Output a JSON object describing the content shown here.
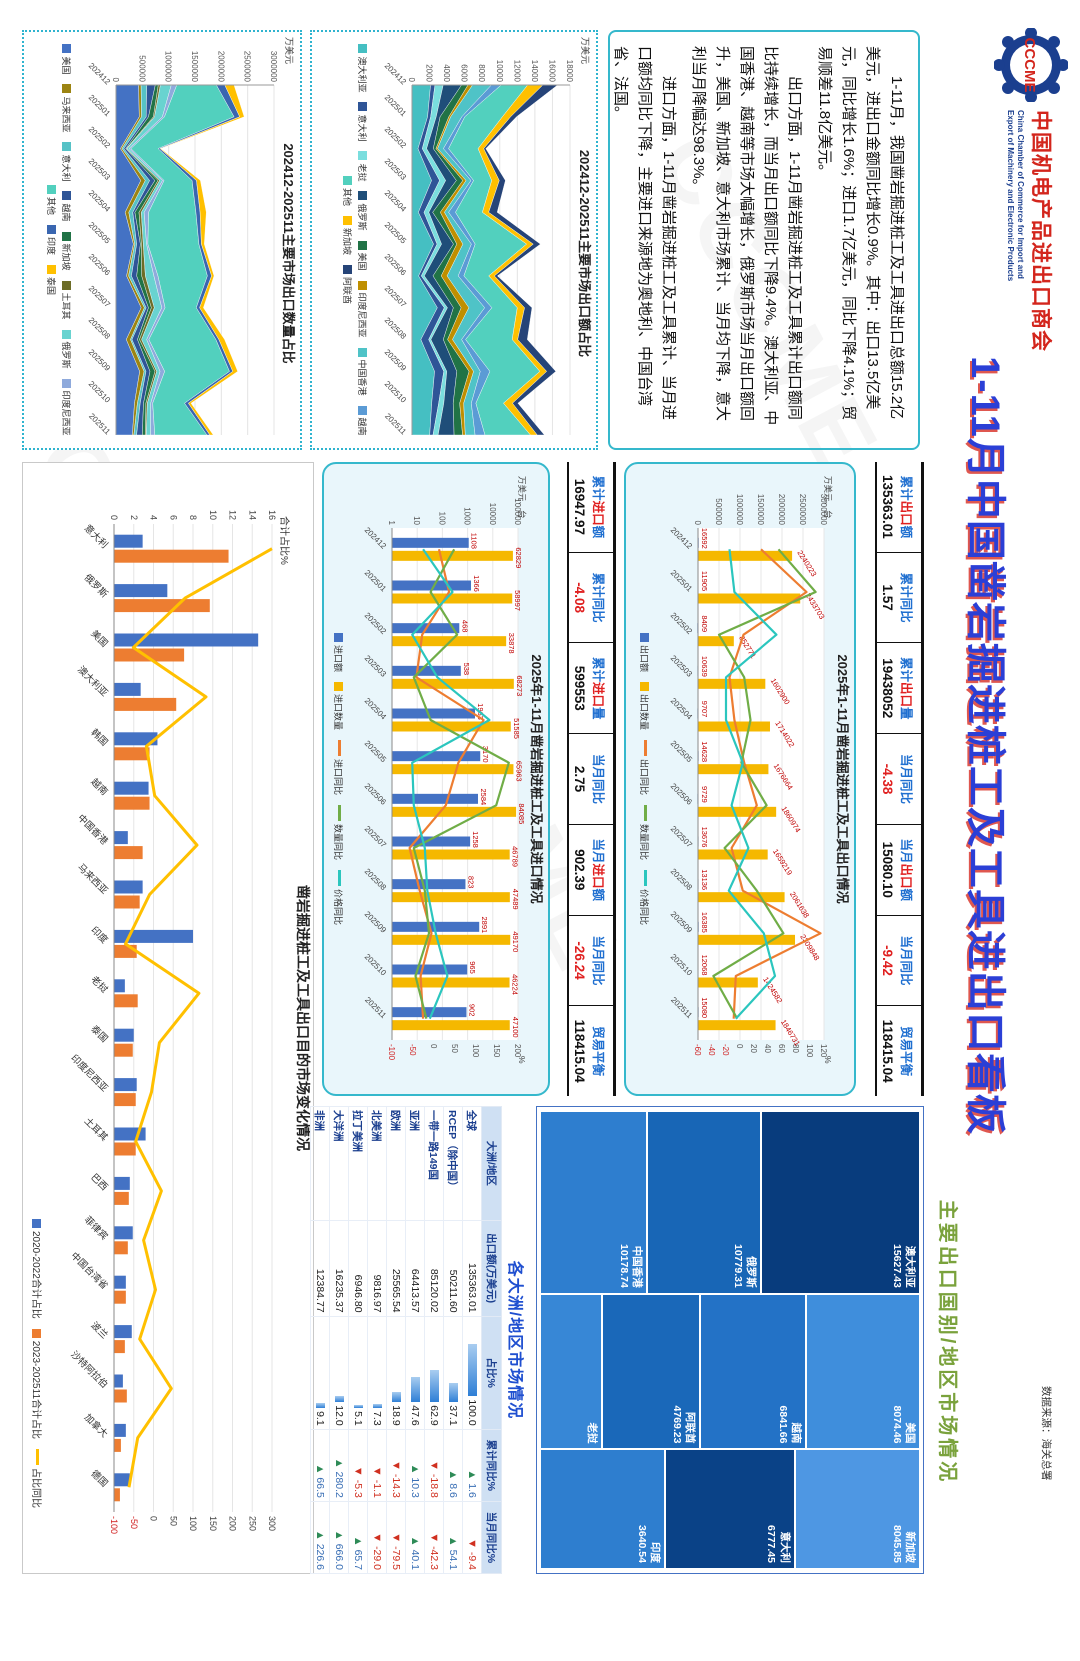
{
  "header": {
    "logo_text": "CCCME",
    "org_cn": "中国机电产品进出口商会",
    "org_en1": "China Chamber of Commerce for Import and",
    "org_en2": "Export of Machinery and Electronic Products",
    "main_title": "1-11月中国凿岩掘进桩工及工具进出口看板",
    "right_section_title": "主要出口国别/地区市场情况",
    "data_source": "数据来源：海关总署"
  },
  "summary": {
    "p1": "1-11月，我国凿岩掘进桩工及工具进出口总额15.2亿美元，进出口金额同比增长0.9%。其中：出口13.5亿美元，同比增长1.6%；进口1.7亿美元，同比下降4.1%；贸易顺差11.8亿美元。",
    "p2": "出口方面，1-11月凿岩掘进桩工及工具累计出口额同比持续增长，而当月出口额同比下降9.4%。澳大利亚、中国香港、越南等市场大幅增长，俄罗斯市场当月出口额回升，美国、新加坡、意大利市场累计、当月均下降，意大利当月降幅达98.3%。",
    "p3": "进口方面，1-11月凿岩掘进桩工及工具累计、当月进口额均同比下降，主要进口来源地为奥地利、中国台湾省、法国。"
  },
  "months": [
    "202412",
    "202501",
    "202502",
    "202503",
    "202504",
    "202505",
    "202506",
    "202507",
    "202508",
    "202509",
    "202510",
    "202511"
  ],
  "kpi_export": {
    "cells": [
      {
        "label": "累计出口额",
        "value": "135363.01"
      },
      {
        "label": "累计同比",
        "value": "1.57"
      },
      {
        "label": "累计出口量",
        "value": "19438052"
      },
      {
        "label": "当月同比",
        "value": "-4.38"
      },
      {
        "label": "当月出口额",
        "value": "15080.10"
      },
      {
        "label": "当月同比",
        "value": "-9.42"
      },
      {
        "label": "贸易平衡",
        "value": "118415.04"
      }
    ]
  },
  "kpi_import": {
    "cells": [
      {
        "label": "累计进口额",
        "value": "16947.97"
      },
      {
        "label": "累计同比",
        "value": "-4.08"
      },
      {
        "label": "累计进口量",
        "value": "599553"
      },
      {
        "label": "当月同比",
        "value": "2.75"
      },
      {
        "label": "当月进口额",
        "value": "902.39"
      },
      {
        "label": "当月同比",
        "value": "-26.24"
      },
      {
        "label": "贸易平衡",
        "value": "118415.04"
      }
    ]
  },
  "chart_data": [
    {
      "id": "export-qty-share",
      "type": "area",
      "title": "202412-202511主要市场出口数量占比",
      "unit": "万美元",
      "ylim": [
        0,
        3000000
      ],
      "ystep": 500000,
      "totals": [
        2240223,
        2433703,
        852771,
        1602900,
        1714022,
        1676664,
        1860974,
        1659219,
        2061638,
        2309848,
        1424582,
        1846731
      ],
      "series": [
        {
          "name": "美国",
          "share": 0.17,
          "color": "#4472C4"
        },
        {
          "name": "马来西亚",
          "share": 0.03,
          "color": "#9C8412"
        },
        {
          "name": "意大利",
          "share": 0.03,
          "color": "#56C2C6"
        },
        {
          "name": "越南",
          "share": 0.04,
          "color": "#2F5597"
        },
        {
          "name": "新加坡",
          "share": 0.03,
          "color": "#217346"
        },
        {
          "name": "土耳其",
          "share": 0.02,
          "color": "#6D6D28"
        },
        {
          "name": "俄罗斯",
          "share": 0.05,
          "color": "#69D3D0"
        },
        {
          "name": "印度尼西亚",
          "share": 0.03,
          "color": "#8FAADC"
        },
        {
          "name": "其他",
          "share": 0.5,
          "color": "#52D0BE"
        },
        {
          "name": "印度",
          "share": 0.06,
          "color": "#3A66B0"
        },
        {
          "name": "泰国",
          "share": 0.04,
          "color": "#FFC000"
        }
      ]
    },
    {
      "id": "export-value-share",
      "type": "area",
      "title": "202412-202511主要市场出口额占比",
      "unit": "万美元",
      "ylim": [
        0,
        18000
      ],
      "ystep": 2000,
      "totals": [
        16592,
        11905,
        8409,
        10639,
        9707,
        14628,
        9729,
        13676,
        13136,
        16385,
        12068,
        15080
      ],
      "series": [
        {
          "name": "澳大利亚",
          "share": 0.13,
          "color": "#45BFC2"
        },
        {
          "name": "意大利",
          "share": 0.05,
          "color": "#2F5597"
        },
        {
          "name": "老挝",
          "share": 0.04,
          "color": "#7ADEDE"
        },
        {
          "name": "俄罗斯",
          "share": 0.08,
          "color": "#1F4E79"
        },
        {
          "name": "美国",
          "share": 0.06,
          "color": "#217346"
        },
        {
          "name": "印度尼西亚",
          "share": 0.04,
          "color": "#BF8F00"
        },
        {
          "name": "中国香港",
          "share": 0.08,
          "color": "#4FC3C7"
        },
        {
          "name": "越南",
          "share": 0.05,
          "color": "#5B9BD5"
        },
        {
          "name": "其他",
          "share": 0.31,
          "color": "#52D0BE"
        },
        {
          "name": "新加坡",
          "share": 0.1,
          "color": "#FFC000"
        },
        {
          "name": "阿联酋",
          "share": 0.06,
          "color": "#264478"
        }
      ]
    },
    {
      "id": "export-combo",
      "type": "combo",
      "title": "2025年1-11月凿岩掘进桩工及工具出口情况",
      "unit": "万美元、台",
      "scale": "linear",
      "ylim": [
        0,
        3000000
      ],
      "ystep": 500000,
      "pct_axis": {
        "min": -60,
        "max": 120,
        "step": 20,
        "unit": "%"
      },
      "bars": [
        {
          "name": "出口额",
          "color": "#4472C4",
          "label_style": "base",
          "values": [
            16592,
            11905,
            8409,
            10639,
            9707,
            14628,
            9729,
            13676,
            13136,
            16385,
            12068,
            15080
          ]
        },
        {
          "name": "出口数量",
          "color": "#F5B800",
          "label_style": "tip-rot",
          "values": [
            2240223,
            2433703,
            852771,
            1602900,
            1714022,
            1676664,
            1860974,
            1659219,
            2061638,
            2309848,
            1424582,
            1846731
          ]
        }
      ],
      "lines": [
        {
          "name": "出口同比",
          "color": "#ED7D31",
          "values": [
            30,
            95,
            5,
            -15,
            -8,
            6,
            24,
            -12,
            4,
            115,
            -6,
            -9
          ]
        },
        {
          "name": "数量同比",
          "color": "#70AD47",
          "values": [
            55,
            108,
            -30,
            6,
            15,
            2,
            38,
            -22,
            24,
            62,
            -38,
            -4
          ]
        },
        {
          "name": "价格同比",
          "color": "#2BC6BE",
          "values": [
            -15,
            -8,
            52,
            -20,
            -20,
            4,
            -12,
            12,
            -16,
            34,
            50,
            -6
          ]
        }
      ]
    },
    {
      "id": "import-combo",
      "type": "combo",
      "title": "2025年1-11月凿岩掘进桩工及工具进口情况",
      "unit": "万美元、台",
      "scale": "log",
      "ylim": [
        1,
        100000
      ],
      "pct_axis": {
        "min": -100,
        "max": 200,
        "step": 50,
        "unit": "%"
      },
      "bars": [
        {
          "name": "进口额",
          "color": "#4472C4",
          "label_style": "tip",
          "values": [
            1108,
            1366,
            468,
            538,
            1963,
            3170,
            2584,
            1258,
            823,
            2891,
            965,
            902
          ]
        },
        {
          "name": "进口数量",
          "color": "#F5B800",
          "label_style": "tip",
          "values": [
            62829,
            58997,
            33878,
            68273,
            51585,
            65963,
            84085,
            46789,
            47489,
            49170,
            46224,
            47100
          ]
        }
      ],
      "lines": [
        {
          "name": "进口同比",
          "color": "#ED7D31",
          "values": [
            12,
            36,
            -28,
            -42,
            118,
            58,
            28,
            -58,
            -34,
            -6,
            -32,
            -26
          ]
        },
        {
          "name": "数量同比",
          "color": "#70AD47",
          "values": [
            48,
            -8,
            55,
            -48,
            -8,
            178,
            148,
            -48,
            -22,
            -12,
            -44,
            -18
          ]
        },
        {
          "name": "价格同比",
          "color": "#2BC6BE",
          "values": [
            -26,
            44,
            -52,
            8,
            132,
            -52,
            -48,
            -22,
            -16,
            4,
            32,
            -10
          ]
        }
      ]
    },
    {
      "id": "dest-market",
      "type": "bar-line",
      "title": "凿岩掘进桩工及工具出口目的市场变化情况",
      "y1_label": "合计占比%",
      "y1lim": [
        0,
        16
      ],
      "y1step": 2,
      "y2lim": [
        -100,
        300
      ],
      "y2step": 50,
      "categories": [
        "意大利",
        "俄罗斯",
        "美国",
        "澳大利亚",
        "韩国",
        "越南",
        "中国香港",
        "马来西亚",
        "印度",
        "老挝",
        "泰国",
        "印度尼西亚",
        "土耳其",
        "巴西",
        "菲律宾",
        "中国台湾省",
        "波兰",
        "沙特阿拉伯",
        "加拿大",
        "德国"
      ],
      "series": [
        {
          "name": "2020-2022合计占比",
          "color": "#4472C4",
          "axis": 1,
          "values": [
            2.9,
            5.4,
            14.6,
            2.7,
            4.4,
            3.5,
            1.4,
            2.9,
            8.0,
            1.1,
            2.0,
            2.3,
            3.2,
            1.6,
            1.9,
            1.2,
            1.8,
            0.9,
            1.2,
            1.6
          ]
        },
        {
          "name": "2023-202511合计占比",
          "color": "#ED7D31",
          "axis": 1,
          "values": [
            11.6,
            9.7,
            7.1,
            6.3,
            3.6,
            3.6,
            2.9,
            2.6,
            2.3,
            2.4,
            1.9,
            2.2,
            2.2,
            1.5,
            1.4,
            1.2,
            1.1,
            1.3,
            0.7,
            0.6
          ]
        },
        {
          "name": "占比同比",
          "color": "#FFC000",
          "axis": 2,
          "line": true,
          "values": [
            300,
            80,
            -51,
            133,
            -18,
            3,
            110,
            -10,
            -71,
            115,
            15,
            -5,
            -45,
            20,
            -25,
            5,
            -35,
            45,
            -40,
            -62
          ]
        }
      ]
    },
    {
      "id": "export-treemap",
      "type": "treemap",
      "columns": [
        {
          "w": 0.4,
          "cells": [
            {
              "name": "澳大利亚",
              "value": "15627.43",
              "h": 0.42,
              "color": "#083C7D"
            },
            {
              "name": "俄罗斯",
              "value": "10779.31",
              "h": 0.3,
              "color": "#1866B6"
            },
            {
              "name": "中国香港",
              "value": "10178.74",
              "h": 0.28,
              "color": "#2E7ECF"
            }
          ]
        },
        {
          "w": 0.34,
          "cells": [
            {
              "name": "美国",
              "value": "8074.46",
              "h": 0.3,
              "color": "#3F8EDC"
            },
            {
              "name": "越南",
              "value": "6841.66",
              "h": 0.28,
              "color": "#2372C6"
            },
            {
              "name": "阿联酋",
              "value": "4769.23",
              "h": 0.26,
              "color": "#1A68B9"
            },
            {
              "name": "老挝",
              "value": "",
              "h": 0.16,
              "color": "#3787D6"
            }
          ]
        },
        {
          "w": 0.26,
          "cells": [
            {
              "name": "新加坡",
              "value": "8045.85",
              "h": 0.33,
              "color": "#4E97E3"
            },
            {
              "name": "意大利",
              "value": "6777.45",
              "h": 0.34,
              "color": "#0A4287"
            },
            {
              "name": "印度",
              "value": "3640.54",
              "h": 0.33,
              "color": "#2E7ECF"
            }
          ]
        }
      ]
    },
    {
      "id": "region-table",
      "type": "table",
      "title": "各大洲/地区市场情况",
      "headers": [
        "大洲/地区",
        "出口额(万美元)",
        "占比%",
        "累计同比%",
        "当月同比%"
      ],
      "rows": [
        [
          "全球",
          "135363.01",
          "100.0",
          "1.6",
          "-9.4"
        ],
        [
          "RCEP（除中国）",
          "50211.60",
          "37.1",
          "8.6",
          "54.1"
        ],
        [
          "一带一路149国",
          "85120.02",
          "62.9",
          "-18.8",
          "-42.3"
        ],
        [
          "亚洲",
          "64413.57",
          "47.6",
          "10.3",
          "40.1"
        ],
        [
          "欧洲",
          "25565.54",
          "18.9",
          "-14.3",
          "-79.5"
        ],
        [
          "北美洲",
          "9816.97",
          "7.3",
          "-1.1",
          "-29.0"
        ],
        [
          "拉丁美洲",
          "6946.80",
          "5.1",
          "-5.3",
          "65.7"
        ],
        [
          "大洋洲",
          "16235.37",
          "12.0",
          "280.2",
          "666.0"
        ],
        [
          "非洲",
          "12384.77",
          "9.1",
          "66.5",
          "226.6"
        ]
      ]
    }
  ]
}
